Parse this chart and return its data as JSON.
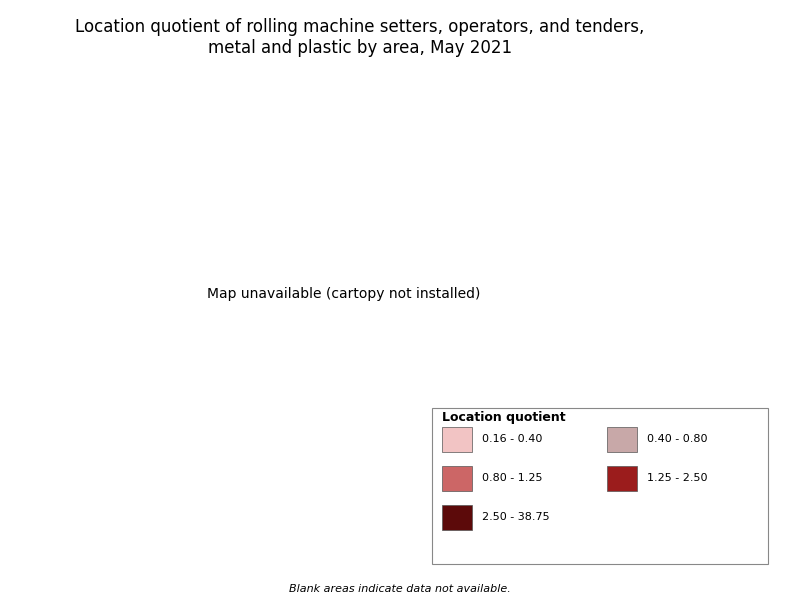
{
  "title": "Location quotient of rolling machine setters, operators, and tenders,\nmetal and plastic by area, May 2021",
  "title_fontsize": 12,
  "legend_title": "Location quotient",
  "legend_labels": [
    "0.16 - 0.40",
    "0.40 - 0.80",
    "0.80 - 1.25",
    "1.25 - 2.50",
    "2.50 - 38.75"
  ],
  "legend_colors": [
    "#f2c4c4",
    "#c8a8a8",
    "#cc6666",
    "#9b1c1c",
    "#5c0a0a"
  ],
  "footnote": "Blank areas indicate data not available.",
  "background_color": "#ffffff",
  "figsize": [
    8.0,
    6.0
  ],
  "dpi": 100,
  "county_edge_color": "#888888",
  "county_edge_width": 0.2,
  "state_edge_color": "#000000",
  "state_edge_width": 0.5
}
